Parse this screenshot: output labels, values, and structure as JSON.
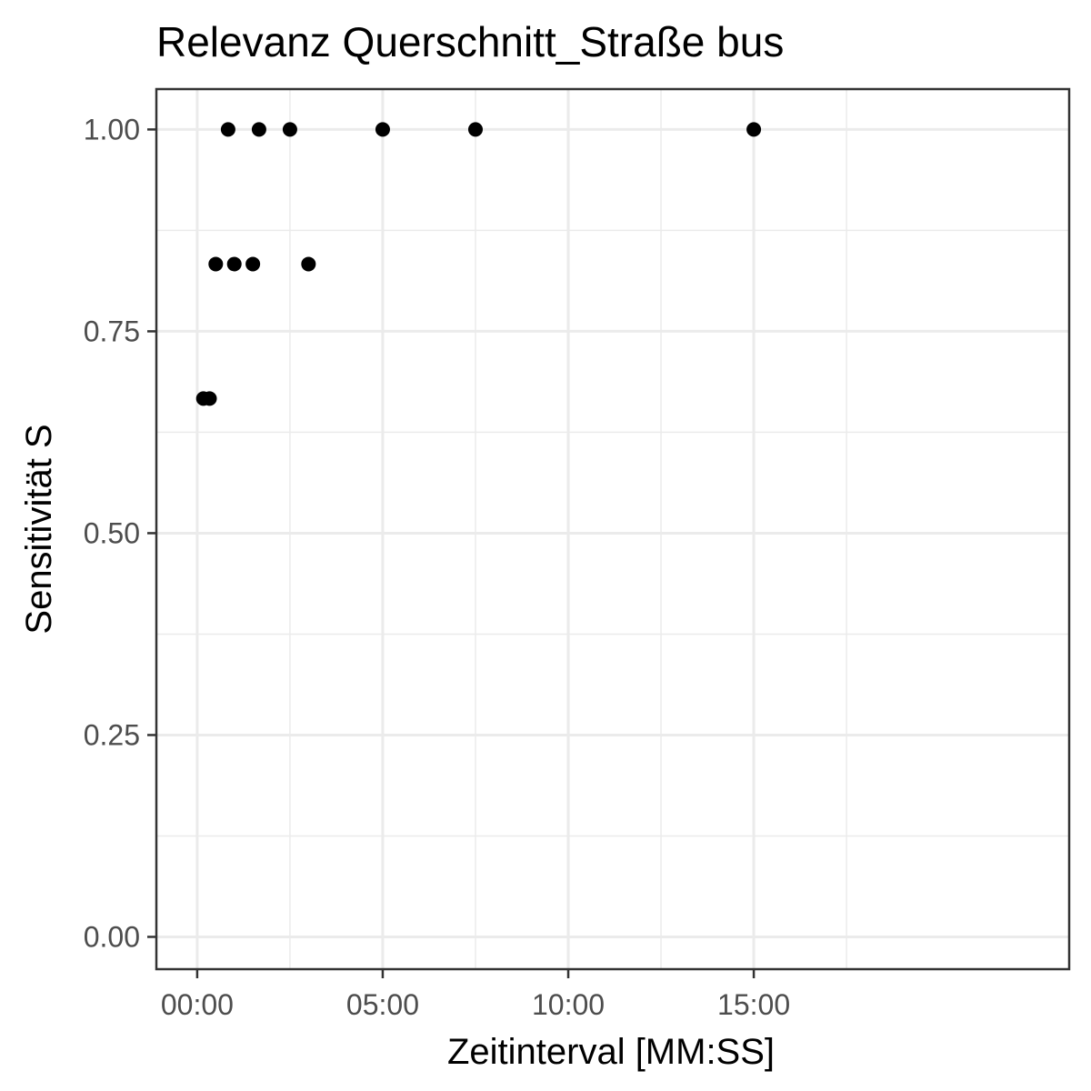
{
  "chart_data": {
    "type": "scatter",
    "title": "Relevanz Querschnitt_Straße bus",
    "xlabel": "Zeitinterval [MM:SS]",
    "ylabel": "Sensitivität S",
    "x_unit": "seconds",
    "xlim": [
      -66,
      1410
    ],
    "ylim": [
      -0.04,
      1.05
    ],
    "x_ticks": [
      {
        "value": 0,
        "label": "00:00"
      },
      {
        "value": 300,
        "label": "05:00"
      },
      {
        "value": 600,
        "label": "10:00"
      },
      {
        "value": 900,
        "label": "15:00"
      }
    ],
    "y_ticks": [
      {
        "value": 0.0,
        "label": "0.00"
      },
      {
        "value": 0.25,
        "label": "0.25"
      },
      {
        "value": 0.5,
        "label": "0.50"
      },
      {
        "value": 0.75,
        "label": "0.75"
      },
      {
        "value": 1.0,
        "label": "1.00"
      }
    ],
    "grid": true,
    "point_color": "#000000",
    "points": [
      {
        "x": 10,
        "y": 0.6667
      },
      {
        "x": 20,
        "y": 0.6667
      },
      {
        "x": 30,
        "y": 0.8333
      },
      {
        "x": 50,
        "y": 1.0
      },
      {
        "x": 60,
        "y": 0.8333
      },
      {
        "x": 90,
        "y": 0.8333
      },
      {
        "x": 100,
        "y": 1.0
      },
      {
        "x": 150,
        "y": 1.0
      },
      {
        "x": 180,
        "y": 0.8333
      },
      {
        "x": 300,
        "y": 1.0
      },
      {
        "x": 450,
        "y": 1.0
      },
      {
        "x": 900,
        "y": 1.0
      }
    ]
  }
}
